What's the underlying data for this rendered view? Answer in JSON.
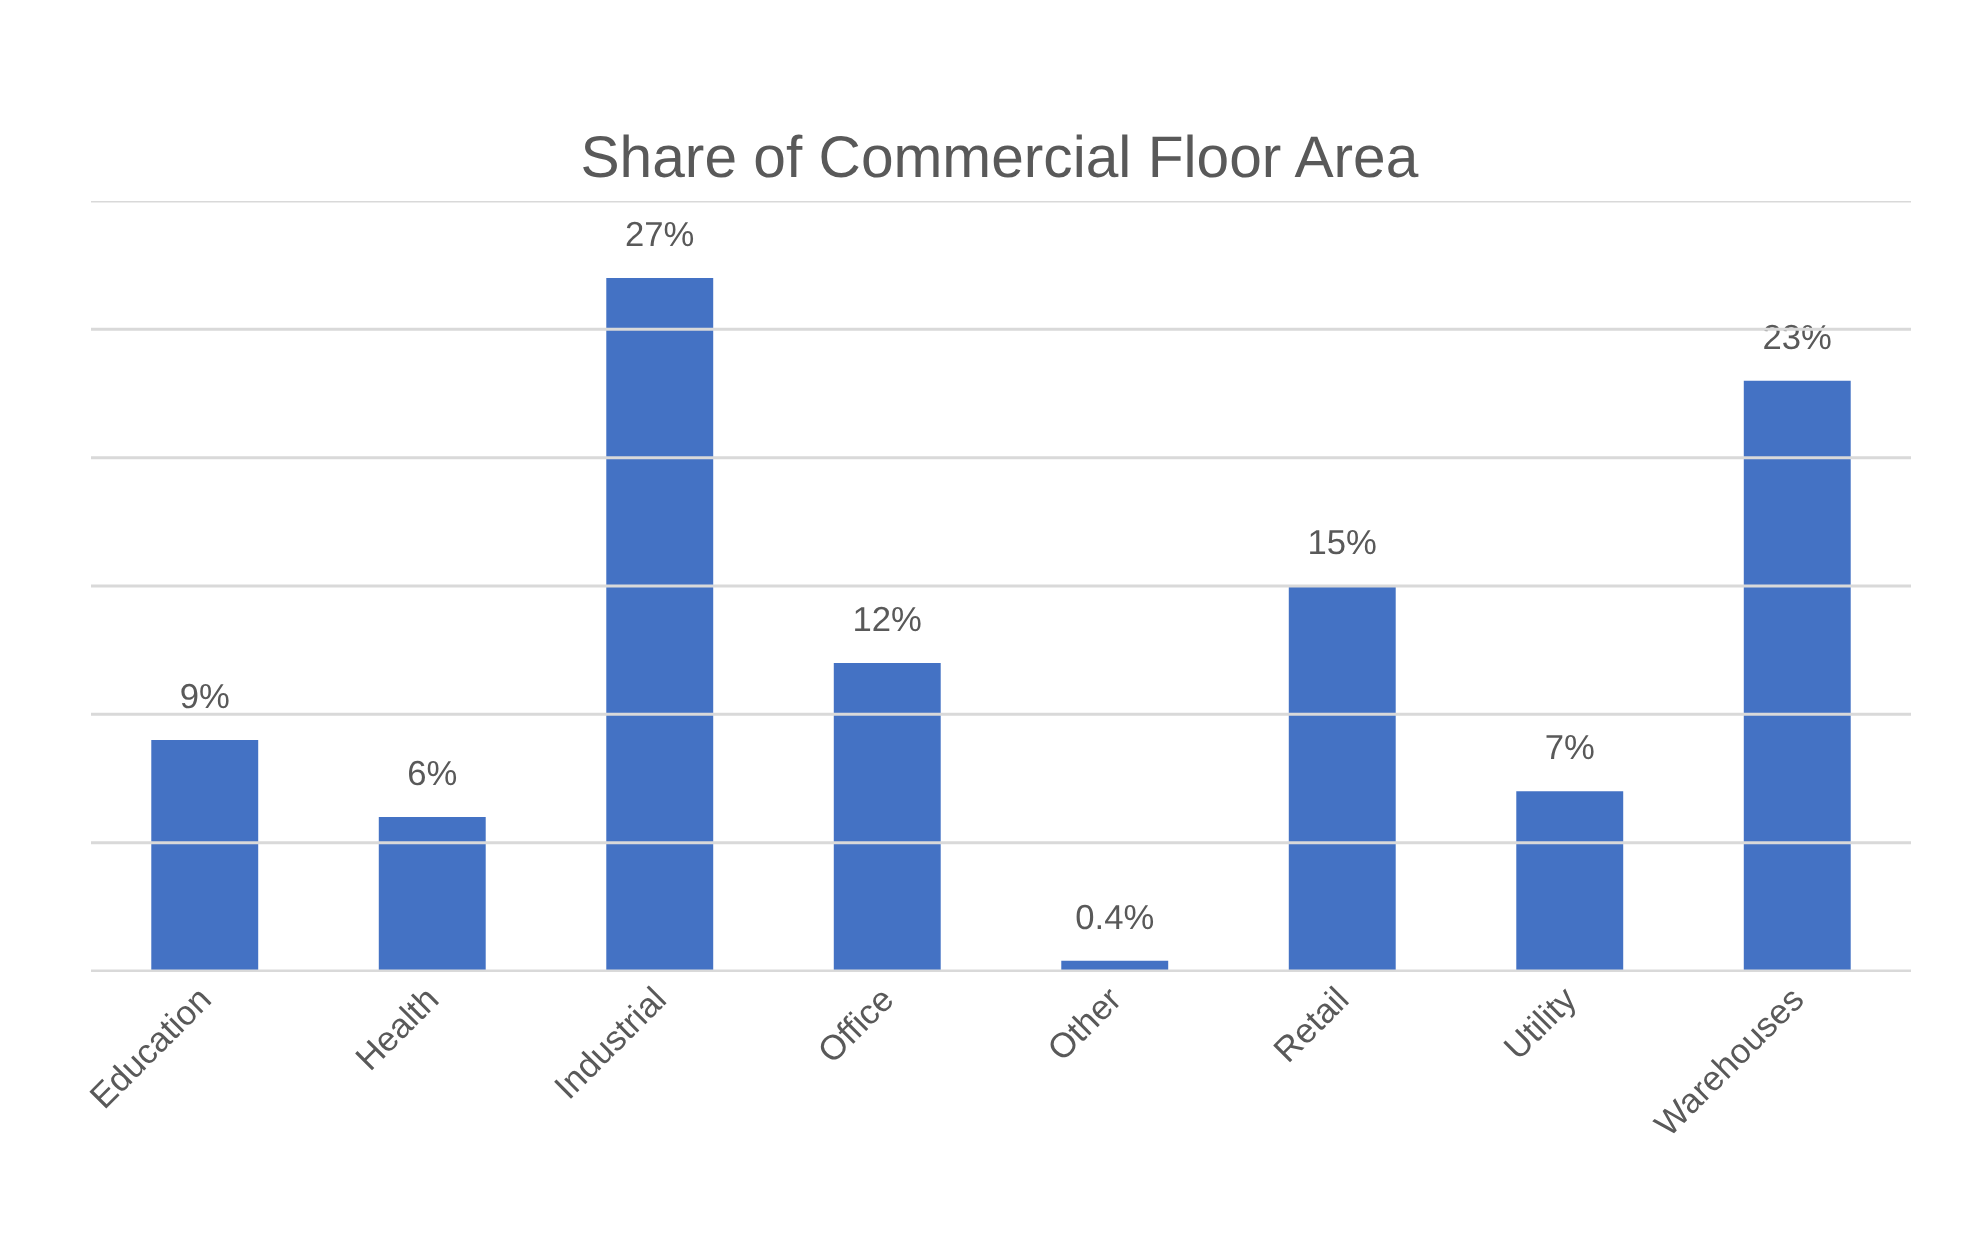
{
  "chart_data": {
    "type": "bar",
    "title": "Share of Commercial Floor Area",
    "categories": [
      "Education",
      "Health",
      "Industrial",
      "Office",
      "Other",
      "Retail",
      "Utility",
      "Warehouses"
    ],
    "values": [
      9,
      6,
      27,
      12,
      0.4,
      15,
      7,
      23
    ],
    "value_labels": [
      "9%",
      "6%",
      "27%",
      "12%",
      "0.4%",
      "15%",
      "7%",
      "23%"
    ],
    "color": "#4472c4",
    "yticks": [
      {
        "value": 0,
        "label": null
      },
      {
        "value": 5,
        "label": null
      },
      {
        "value": 10,
        "label": null
      },
      {
        "value": 15,
        "label": null
      },
      {
        "value": 20,
        "label": null
      },
      {
        "value": 25,
        "label": null
      },
      {
        "value": 30,
        "label": null
      }
    ],
    "tick_labels": "x",
    "grid": "y"
  }
}
